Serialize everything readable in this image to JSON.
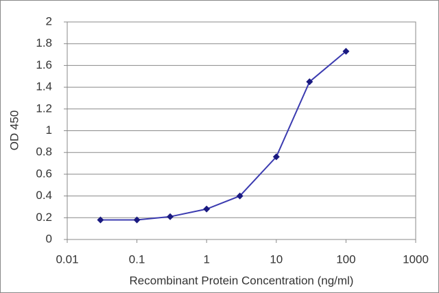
{
  "chart_data": {
    "type": "line",
    "x_label": "Recombinant Protein Concentration (ng/ml)",
    "y_label": "OD 450",
    "x": [
      0.03,
      0.1,
      0.3,
      1,
      3,
      10,
      30,
      100
    ],
    "series": [
      {
        "color": "#3b3bb0",
        "values": [
          0.18,
          0.18,
          0.21,
          0.28,
          0.4,
          0.76,
          1.45,
          1.73
        ]
      }
    ],
    "xlim": [
      0.01,
      1000
    ],
    "xticks": [
      0.01,
      0.1,
      1,
      10,
      100,
      1000
    ],
    "xscale": "log",
    "ylim": [
      0,
      2
    ],
    "yticks": [
      0,
      0.2,
      0.4,
      0.6,
      0.8,
      1,
      1.2,
      1.4,
      1.6,
      1.8,
      2
    ],
    "grid": true
  }
}
